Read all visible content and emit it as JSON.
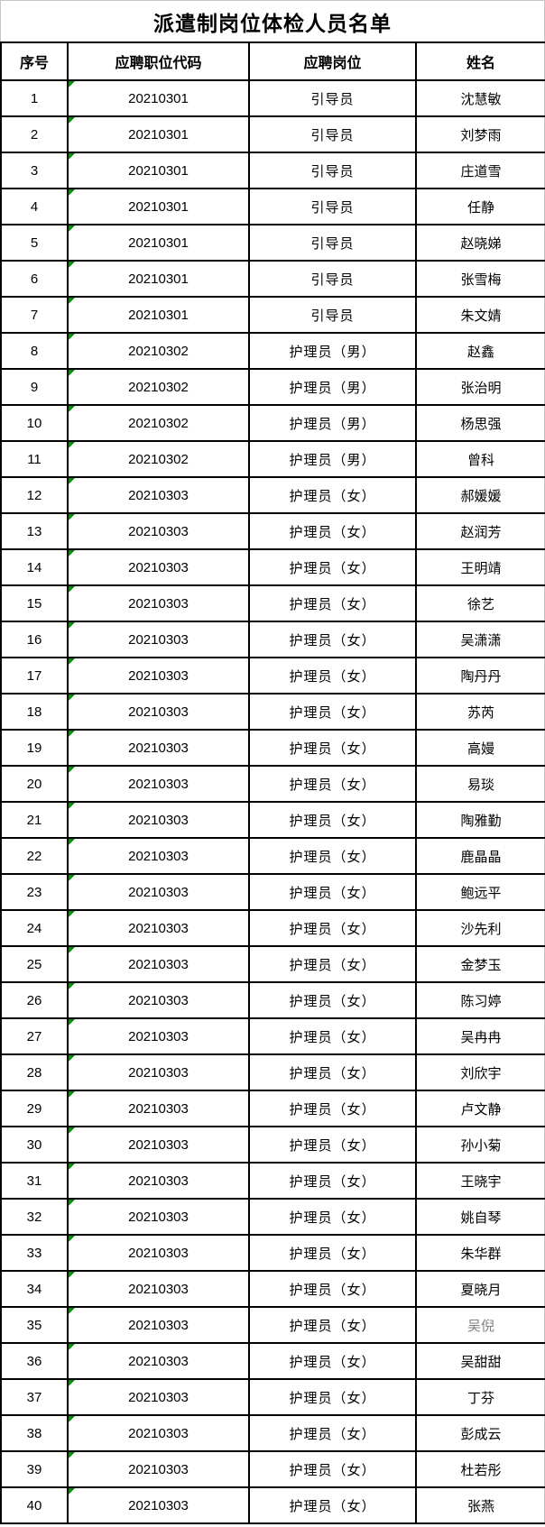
{
  "title": "派遣制岗位体检人员名单",
  "table": {
    "columns": [
      "序号",
      "应聘职位代码",
      "应聘岗位",
      "姓名"
    ],
    "rows": [
      {
        "no": "1",
        "code": "20210301",
        "position": "引导员",
        "name": "沈慧敏"
      },
      {
        "no": "2",
        "code": "20210301",
        "position": "引导员",
        "name": "刘梦雨"
      },
      {
        "no": "3",
        "code": "20210301",
        "position": "引导员",
        "name": "庄道雪"
      },
      {
        "no": "4",
        "code": "20210301",
        "position": "引导员",
        "name": "任静"
      },
      {
        "no": "5",
        "code": "20210301",
        "position": "引导员",
        "name": "赵晓娣"
      },
      {
        "no": "6",
        "code": "20210301",
        "position": "引导员",
        "name": "张雪梅"
      },
      {
        "no": "7",
        "code": "20210301",
        "position": "引导员",
        "name": "朱文婧"
      },
      {
        "no": "8",
        "code": "20210302",
        "position": "护理员（男）",
        "name": "赵鑫"
      },
      {
        "no": "9",
        "code": "20210302",
        "position": "护理员（男）",
        "name": "张治明"
      },
      {
        "no": "10",
        "code": "20210302",
        "position": "护理员（男）",
        "name": "杨思强"
      },
      {
        "no": "11",
        "code": "20210302",
        "position": "护理员（男）",
        "name": "曾科"
      },
      {
        "no": "12",
        "code": "20210303",
        "position": "护理员（女）",
        "name": "郝媛媛"
      },
      {
        "no": "13",
        "code": "20210303",
        "position": "护理员（女）",
        "name": "赵润芳"
      },
      {
        "no": "14",
        "code": "20210303",
        "position": "护理员（女）",
        "name": "王明靖"
      },
      {
        "no": "15",
        "code": "20210303",
        "position": "护理员（女）",
        "name": "徐艺"
      },
      {
        "no": "16",
        "code": "20210303",
        "position": "护理员（女）",
        "name": "吴潇潇"
      },
      {
        "no": "17",
        "code": "20210303",
        "position": "护理员（女）",
        "name": "陶丹丹"
      },
      {
        "no": "18",
        "code": "20210303",
        "position": "护理员（女）",
        "name": "苏芮"
      },
      {
        "no": "19",
        "code": "20210303",
        "position": "护理员（女）",
        "name": "高嫚"
      },
      {
        "no": "20",
        "code": "20210303",
        "position": "护理员（女）",
        "name": "易琰"
      },
      {
        "no": "21",
        "code": "20210303",
        "position": "护理员（女）",
        "name": "陶雅勤"
      },
      {
        "no": "22",
        "code": "20210303",
        "position": "护理员（女）",
        "name": "鹿晶晶"
      },
      {
        "no": "23",
        "code": "20210303",
        "position": "护理员（女）",
        "name": "鲍远平"
      },
      {
        "no": "24",
        "code": "20210303",
        "position": "护理员（女）",
        "name": "沙先利"
      },
      {
        "no": "25",
        "code": "20210303",
        "position": "护理员（女）",
        "name": "金梦玉"
      },
      {
        "no": "26",
        "code": "20210303",
        "position": "护理员（女）",
        "name": "陈习婷"
      },
      {
        "no": "27",
        "code": "20210303",
        "position": "护理员（女）",
        "name": "吴冉冉"
      },
      {
        "no": "28",
        "code": "20210303",
        "position": "护理员（女）",
        "name": "刘欣宇"
      },
      {
        "no": "29",
        "code": "20210303",
        "position": "护理员（女）",
        "name": "卢文静"
      },
      {
        "no": "30",
        "code": "20210303",
        "position": "护理员（女）",
        "name": "孙小菊"
      },
      {
        "no": "31",
        "code": "20210303",
        "position": "护理员（女）",
        "name": "王晓宇"
      },
      {
        "no": "32",
        "code": "20210303",
        "position": "护理员（女）",
        "name": "姚自琴"
      },
      {
        "no": "33",
        "code": "20210303",
        "position": "护理员（女）",
        "name": "朱华群"
      },
      {
        "no": "34",
        "code": "20210303",
        "position": "护理员（女）",
        "name": "夏晓月"
      },
      {
        "no": "35",
        "code": "20210303",
        "position": "护理员（女）",
        "name": "吴倪",
        "name_muted": true
      },
      {
        "no": "36",
        "code": "20210303",
        "position": "护理员（女）",
        "name": "吴甜甜"
      },
      {
        "no": "37",
        "code": "20210303",
        "position": "护理员（女）",
        "name": "丁芬"
      },
      {
        "no": "38",
        "code": "20210303",
        "position": "护理员（女）",
        "name": "彭成云"
      },
      {
        "no": "39",
        "code": "20210303",
        "position": "护理员（女）",
        "name": "杜若彤"
      },
      {
        "no": "40",
        "code": "20210303",
        "position": "护理员（女）",
        "name": "张燕"
      }
    ]
  },
  "colors": {
    "flag_green": "#128712",
    "muted_text": "#808080",
    "table_border": "#000000",
    "sheet_gridline": "#c6c6c6"
  },
  "icons": {
    "code_flag": "text-format-flag"
  }
}
